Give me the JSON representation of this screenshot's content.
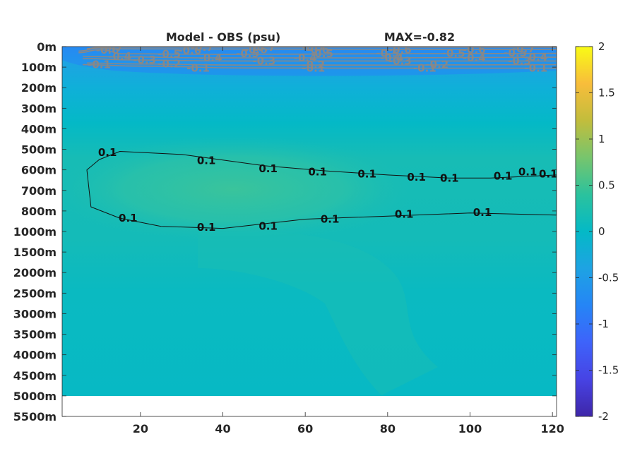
{
  "chart_data": {
    "type": "heatmap",
    "title_left": "Model - OBS (psu)",
    "title_right": "MAX=-0.82",
    "xlim": [
      1,
      121
    ],
    "x_ticks": [
      20,
      40,
      60,
      80,
      100,
      120
    ],
    "y_tick_labels": [
      "0m",
      "100m",
      "200m",
      "300m",
      "400m",
      "500m",
      "600m",
      "700m",
      "800m",
      "1000m",
      "1500m",
      "2000m",
      "2500m",
      "3000m",
      "3500m",
      "4000m",
      "4500m",
      "5000m",
      "5500m"
    ],
    "data_bottom_label": "5000m",
    "colorbar": {
      "min": -2,
      "max": 2,
      "ticks": [
        {
          "v": 2,
          "label": "2"
        },
        {
          "v": 1.5,
          "label": "1.5"
        },
        {
          "v": 1,
          "label": "1"
        },
        {
          "v": 0.5,
          "label": "0.5"
        },
        {
          "v": 0,
          "label": "0"
        },
        {
          "v": -0.5,
          "label": "-0.5"
        },
        {
          "v": -1,
          "label": "-1"
        },
        {
          "v": -1.5,
          "label": "-1.5"
        },
        {
          "v": -2,
          "label": "-2"
        }
      ]
    },
    "gray_contours": [
      {
        "level": -0.7,
        "points": [
          [
            7,
            10
          ],
          [
            10,
            2.5
          ],
          [
            60,
            2.5
          ],
          [
            121,
            3
          ]
        ],
        "labels": [
          {
            "x": 13,
            "y": 6,
            "t": "-0.7"
          },
          {
            "x": 35,
            "y": 4,
            "t": "-0.7"
          },
          {
            "x": 50,
            "y": 3,
            "t": "-0.7"
          },
          {
            "x": 62,
            "y": 3,
            "t": "-0.7"
          },
          {
            "x": 113,
            "y": 10,
            "t": "-0.7"
          }
        ]
      },
      {
        "level": -0.6,
        "points": [
          [
            5,
            22
          ],
          [
            10,
            7
          ],
          [
            15,
            11
          ],
          [
            40,
            12
          ],
          [
            80,
            13
          ],
          [
            121,
            14
          ]
        ],
        "labels": [
          {
            "x": 12,
            "y": 18,
            "t": "-0.6"
          },
          {
            "x": 32,
            "y": 19,
            "t": "-0.6"
          },
          {
            "x": 48,
            "y": 16,
            "t": "-0.6"
          },
          {
            "x": 63,
            "y": 16,
            "t": "-0.6"
          },
          {
            "x": 83,
            "y": 16,
            "t": "-0.6"
          },
          {
            "x": 101,
            "y": 15,
            "t": "-0.6"
          }
        ]
      },
      {
        "level": -0.5,
        "points": [
          [
            5,
            30
          ],
          [
            10,
            15
          ],
          [
            16,
            35
          ],
          [
            40,
            38
          ],
          [
            80,
            35
          ],
          [
            121,
            33
          ]
        ],
        "labels": [
          {
            "x": 27,
            "y": 36,
            "t": "-0.5"
          },
          {
            "x": 46,
            "y": 35,
            "t": "-0.5"
          },
          {
            "x": 64,
            "y": 35,
            "t": "-0.5"
          },
          {
            "x": 80,
            "y": 33,
            "t": "-0.5"
          },
          {
            "x": 96,
            "y": 33,
            "t": "-0.5"
          },
          {
            "x": 111,
            "y": 31,
            "t": "-0.5"
          }
        ]
      },
      {
        "level": -0.4,
        "points": [
          [
            6,
            48
          ],
          [
            16,
            50
          ],
          [
            35,
            55
          ],
          [
            80,
            55
          ],
          [
            121,
            52
          ]
        ],
        "labels": [
          {
            "x": 15,
            "y": 48,
            "t": "-0.4"
          },
          {
            "x": 37,
            "y": 55,
            "t": "-0.4"
          },
          {
            "x": 60,
            "y": 55,
            "t": "-0.4"
          },
          {
            "x": 81,
            "y": 55,
            "t": "-0.4"
          },
          {
            "x": 101,
            "y": 55,
            "t": "-0.4"
          },
          {
            "x": 116,
            "y": 52,
            "t": "-0.4"
          }
        ]
      },
      {
        "level": -0.3,
        "points": [
          [
            6,
            58
          ],
          [
            18,
            65
          ],
          [
            40,
            70
          ],
          [
            80,
            70
          ],
          [
            121,
            70
          ]
        ],
        "labels": [
          {
            "x": 21,
            "y": 65,
            "t": "-0.3"
          },
          {
            "x": 50,
            "y": 70,
            "t": "-0.3"
          },
          {
            "x": 83,
            "y": 70,
            "t": "-0.3"
          },
          {
            "x": 112,
            "y": 70,
            "t": "-0.3"
          }
        ]
      },
      {
        "level": -0.2,
        "points": [
          [
            7,
            80
          ],
          [
            20,
            85
          ],
          [
            45,
            90
          ],
          [
            80,
            90
          ],
          [
            121,
            88
          ]
        ],
        "labels": [
          {
            "x": 27,
            "y": 85,
            "t": "-0.2"
          },
          {
            "x": 62,
            "y": 90,
            "t": "-0.2"
          },
          {
            "x": 92,
            "y": 88,
            "t": "-0.2"
          }
        ]
      },
      {
        "level": -0.1,
        "points": [
          [
            6,
            88
          ],
          [
            20,
            95
          ],
          [
            45,
            104
          ],
          [
            80,
            105
          ],
          [
            121,
            105
          ]
        ],
        "labels": [
          {
            "x": 10,
            "y": 88,
            "t": "-0.1"
          },
          {
            "x": 34,
            "y": 104,
            "t": "-0.1"
          },
          {
            "x": 62,
            "y": 105,
            "t": "-0.1"
          },
          {
            "x": 89,
            "y": 105,
            "t": "-0.1"
          },
          {
            "x": 116,
            "y": 105,
            "t": "-0.1"
          }
        ]
      }
    ],
    "black_contours": [
      {
        "level": 0.1,
        "points": [
          [
            15,
            510
          ],
          [
            30,
            525
          ],
          [
            50,
            580
          ],
          [
            65,
            605
          ],
          [
            80,
            625
          ],
          [
            95,
            640
          ],
          [
            105,
            640
          ],
          [
            121,
            625
          ],
          [
            121,
            840
          ],
          [
            100,
            820
          ],
          [
            80,
            850
          ],
          [
            60,
            880
          ],
          [
            40,
            970
          ],
          [
            25,
            950
          ],
          [
            15,
            870
          ],
          [
            8,
            780
          ],
          [
            7,
            600
          ],
          [
            10,
            550
          ],
          [
            15,
            510
          ]
        ],
        "labels": [
          {
            "x": 12,
            "y": 516,
            "t": "0.1"
          },
          {
            "x": 36,
            "y": 555,
            "t": "0.1"
          },
          {
            "x": 51,
            "y": 595,
            "t": "0.1"
          },
          {
            "x": 63,
            "y": 610,
            "t": "0.1"
          },
          {
            "x": 75,
            "y": 620,
            "t": "0.1"
          },
          {
            "x": 87,
            "y": 635,
            "t": "0.1"
          },
          {
            "x": 95,
            "y": 640,
            "t": "0.1"
          },
          {
            "x": 108,
            "y": 630,
            "t": "0.1"
          },
          {
            "x": 114,
            "y": 610,
            "t": "0.1"
          },
          {
            "x": 119,
            "y": 620,
            "t": "0.1"
          },
          {
            "x": 17,
            "y": 870,
            "t": "0.1"
          },
          {
            "x": 36,
            "y": 960,
            "t": "0.1"
          },
          {
            "x": 51,
            "y": 950,
            "t": "0.1"
          },
          {
            "x": 66,
            "y": 880,
            "t": "0.1"
          },
          {
            "x": 84,
            "y": 830,
            "t": "0.1"
          },
          {
            "x": 103,
            "y": 815,
            "t": "0.1"
          }
        ]
      }
    ]
  }
}
